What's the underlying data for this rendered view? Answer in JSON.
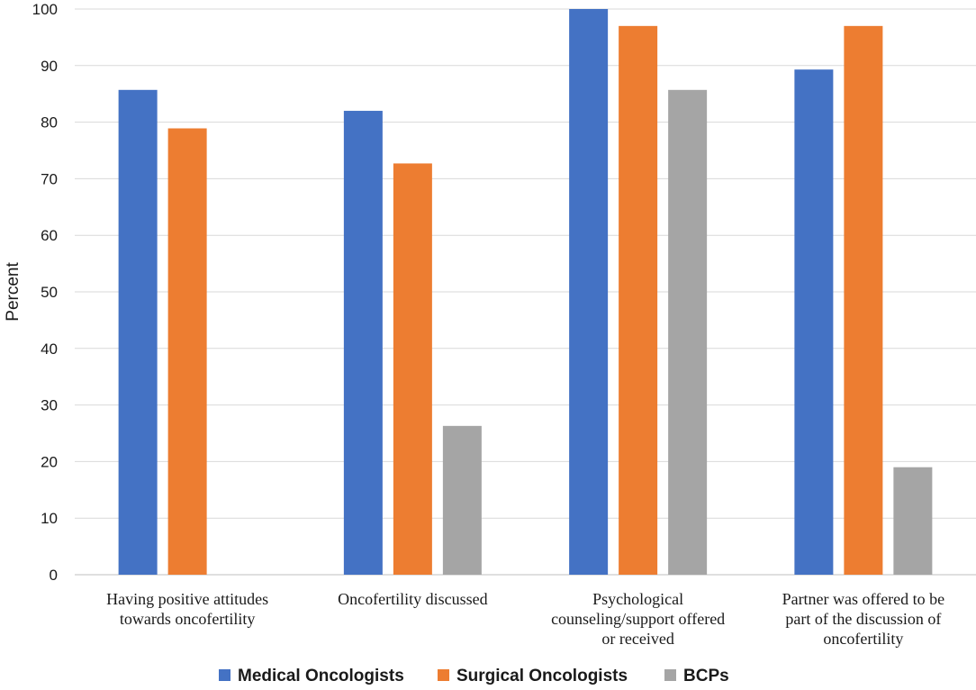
{
  "chart_data": {
    "type": "bar",
    "title": "",
    "xlabel": "",
    "ylabel": "Percent",
    "ylim": [
      0,
      100
    ],
    "yticks": [
      0,
      10,
      20,
      30,
      40,
      50,
      60,
      70,
      80,
      90,
      100
    ],
    "grid": true,
    "legend_position": "bottom",
    "categories": [
      [
        "Having positive attitudes",
        "towards oncofertility"
      ],
      [
        "Oncofertility discussed"
      ],
      [
        "Psychological",
        "counseling/support offered",
        "or received"
      ],
      [
        "Partner was offered to be",
        "part of the discussion of",
        "oncofertility"
      ]
    ],
    "series": [
      {
        "name": "Medical Oncologists",
        "color": "#4472C4",
        "values": [
          85.7,
          82.0,
          100,
          89.3
        ]
      },
      {
        "name": "Surgical Oncologists",
        "color": "#ED7D31",
        "values": [
          78.9,
          72.7,
          97.0,
          97.0
        ]
      },
      {
        "name": "BCPs",
        "color": "#A5A5A5",
        "values": [
          null,
          26.3,
          85.7,
          19.0
        ]
      }
    ]
  }
}
